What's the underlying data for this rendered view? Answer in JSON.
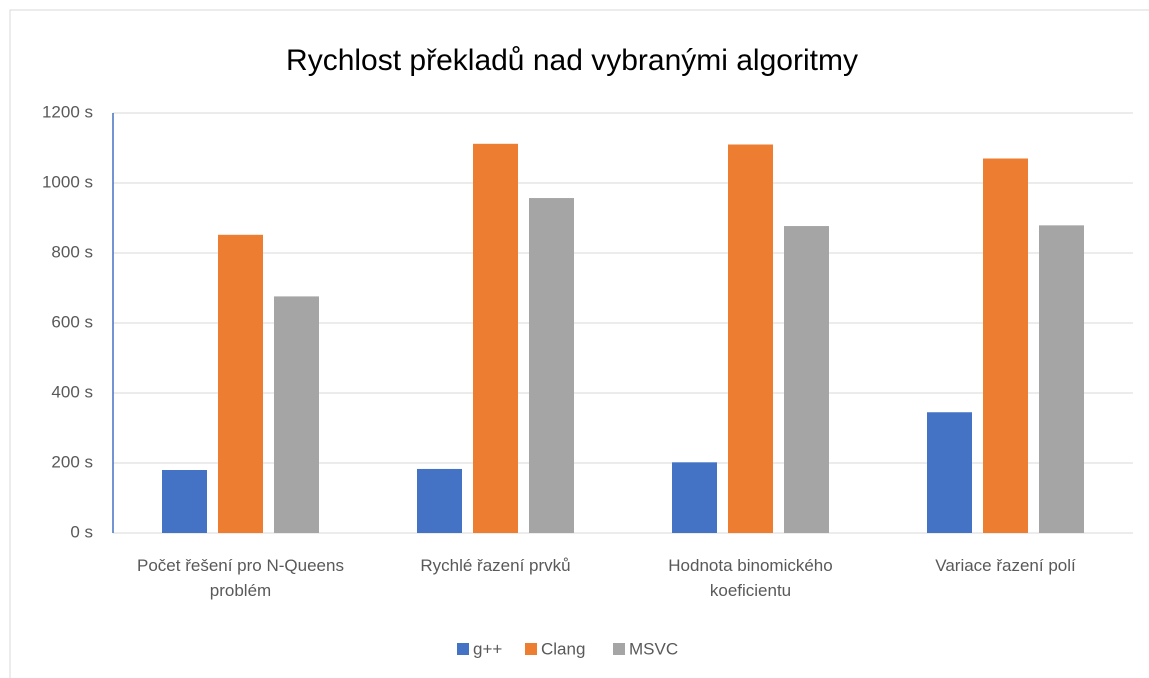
{
  "chart_data": {
    "type": "bar",
    "title": "Rychlost překladů nad vybranými algoritmy",
    "categories": [
      "Počet řešení pro N-Queens problém",
      "Rychlé řazení prvků",
      "Hodnota binomického koeficientu",
      "Variace řazení polí"
    ],
    "series": [
      {
        "name": "g++",
        "color": "#4472c4",
        "values": [
          180,
          183,
          202,
          345
        ]
      },
      {
        "name": "Clang",
        "color": "#ed7d31",
        "values": [
          852,
          1112,
          1110,
          1070
        ]
      },
      {
        "name": "MSVC",
        "color": "#a5a5a5",
        "values": [
          676,
          957,
          877,
          879
        ]
      }
    ],
    "ylim": [
      0,
      1200
    ],
    "yticks": [
      {
        "value": 0,
        "label": "0 s"
      },
      {
        "value": 200,
        "label": "200 s"
      },
      {
        "value": 400,
        "label": "400 s"
      },
      {
        "value": 600,
        "label": "600 s"
      },
      {
        "value": 800,
        "label": "800 s"
      },
      {
        "value": 1000,
        "label": "1000 s"
      },
      {
        "value": 1200,
        "label": "1200 s"
      }
    ],
    "grid": true,
    "legend": "bottom"
  }
}
